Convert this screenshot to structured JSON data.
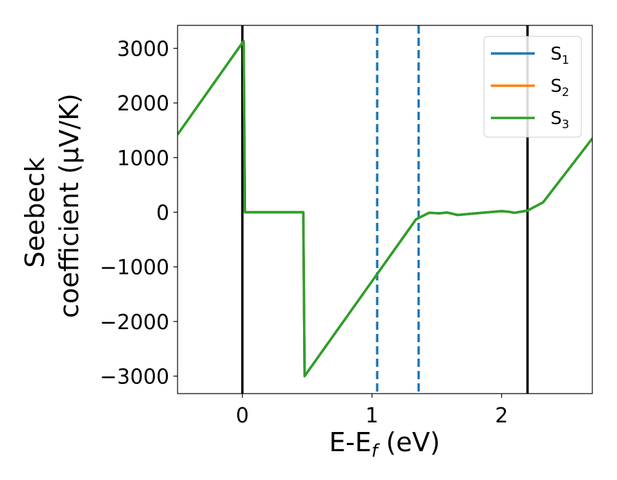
{
  "chart_data": {
    "type": "line",
    "xlabel": "E-E",
    "xlabel_sub": "f",
    "xlabel_unit": " (eV)",
    "ylabel_line1": "Seebeck",
    "ylabel_line2": "coefficient  (μV/K)",
    "xlim": [
      -0.5,
      2.7
    ],
    "ylim": [
      -3320,
      3420
    ],
    "x_ticks": [
      0,
      1,
      2
    ],
    "x_tick_labels": [
      "0",
      "1",
      "2"
    ],
    "y_ticks": [
      3000,
      2000,
      1000,
      0,
      -1000,
      -2000,
      -3000
    ],
    "y_tick_labels": [
      "3000",
      "2000",
      "1000",
      "0",
      "−1000",
      "−2000",
      "−3000"
    ],
    "grid": false,
    "legend_position": "top-right",
    "vlines": [
      {
        "x": 0.0,
        "style": "solid",
        "color": "#000000"
      },
      {
        "x": 2.2,
        "style": "solid",
        "color": "#000000"
      },
      {
        "x": 1.04,
        "style": "dashed",
        "color": "#1f77b4"
      },
      {
        "x": 1.36,
        "style": "dashed",
        "color": "#1f77b4"
      }
    ],
    "series": [
      {
        "name": "S",
        "sub": "1",
        "color": "#1f77b4",
        "points": [
          [
            -0.5,
            1420
          ],
          [
            0.0,
            3100
          ],
          [
            0.01,
            3130
          ],
          [
            0.02,
            0
          ],
          [
            0.47,
            0
          ],
          [
            0.48,
            -3000
          ],
          [
            1.34,
            -130
          ],
          [
            1.44,
            -10
          ],
          [
            1.52,
            -20
          ],
          [
            1.58,
            -5
          ],
          [
            1.66,
            -50
          ],
          [
            1.8,
            -20
          ],
          [
            2.0,
            20
          ],
          [
            2.05,
            10
          ],
          [
            2.1,
            -10
          ],
          [
            2.2,
            30
          ],
          [
            2.32,
            180
          ],
          [
            2.7,
            1350
          ]
        ]
      },
      {
        "name": "S",
        "sub": "2",
        "color": "#ff7f0e",
        "points": [
          [
            -0.5,
            1420
          ],
          [
            0.0,
            3100
          ],
          [
            0.01,
            3130
          ],
          [
            0.02,
            0
          ],
          [
            0.47,
            0
          ],
          [
            0.48,
            -3000
          ],
          [
            1.34,
            -130
          ],
          [
            1.44,
            -10
          ],
          [
            1.52,
            -20
          ],
          [
            1.58,
            -5
          ],
          [
            1.66,
            -50
          ],
          [
            1.8,
            -20
          ],
          [
            2.0,
            20
          ],
          [
            2.05,
            10
          ],
          [
            2.1,
            -10
          ],
          [
            2.2,
            30
          ],
          [
            2.32,
            180
          ],
          [
            2.7,
            1350
          ]
        ]
      },
      {
        "name": "S",
        "sub": "3",
        "color": "#2ca02c",
        "points": [
          [
            -0.5,
            1420
          ],
          [
            0.0,
            3100
          ],
          [
            0.01,
            3130
          ],
          [
            0.02,
            0
          ],
          [
            0.47,
            0
          ],
          [
            0.48,
            -3000
          ],
          [
            1.34,
            -130
          ],
          [
            1.44,
            -10
          ],
          [
            1.52,
            -20
          ],
          [
            1.58,
            -5
          ],
          [
            1.66,
            -50
          ],
          [
            1.8,
            -20
          ],
          [
            2.0,
            20
          ],
          [
            2.05,
            10
          ],
          [
            2.1,
            -10
          ],
          [
            2.2,
            30
          ],
          [
            2.32,
            180
          ],
          [
            2.7,
            1350
          ]
        ]
      }
    ]
  }
}
